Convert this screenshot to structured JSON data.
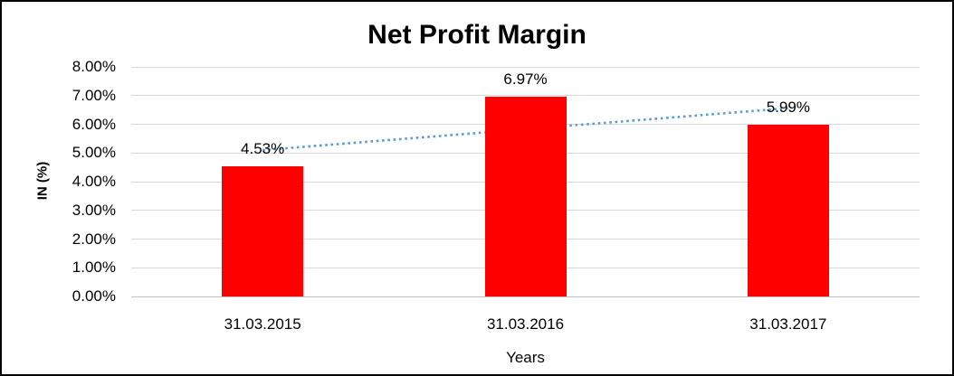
{
  "chart_data": {
    "type": "bar",
    "title": "Net Profit Margin",
    "xlabel": "Years",
    "ylabel": "IN (%)",
    "categories": [
      "31.03.2015",
      "31.03.2016",
      "31.03.2017"
    ],
    "values": [
      4.53,
      6.97,
      5.99
    ],
    "value_labels": [
      "4.53%",
      "6.97%",
      "5.99%"
    ],
    "yticks": [
      "0.00%",
      "1.00%",
      "2.00%",
      "3.00%",
      "4.00%",
      "5.00%",
      "6.00%",
      "7.00%",
      "8.00%"
    ],
    "ylim": [
      0,
      8
    ],
    "grid": true,
    "legend": "none",
    "trendline": {
      "type": "linear",
      "style": "dotted",
      "color": "#5B9BD5"
    },
    "colors": {
      "bar": "#FF0000",
      "gridline": "#D9D9D9",
      "axis_line": "#BFBFBF",
      "text": "#000000",
      "background": "#FFFFFF",
      "frame_border": "#000000"
    }
  }
}
